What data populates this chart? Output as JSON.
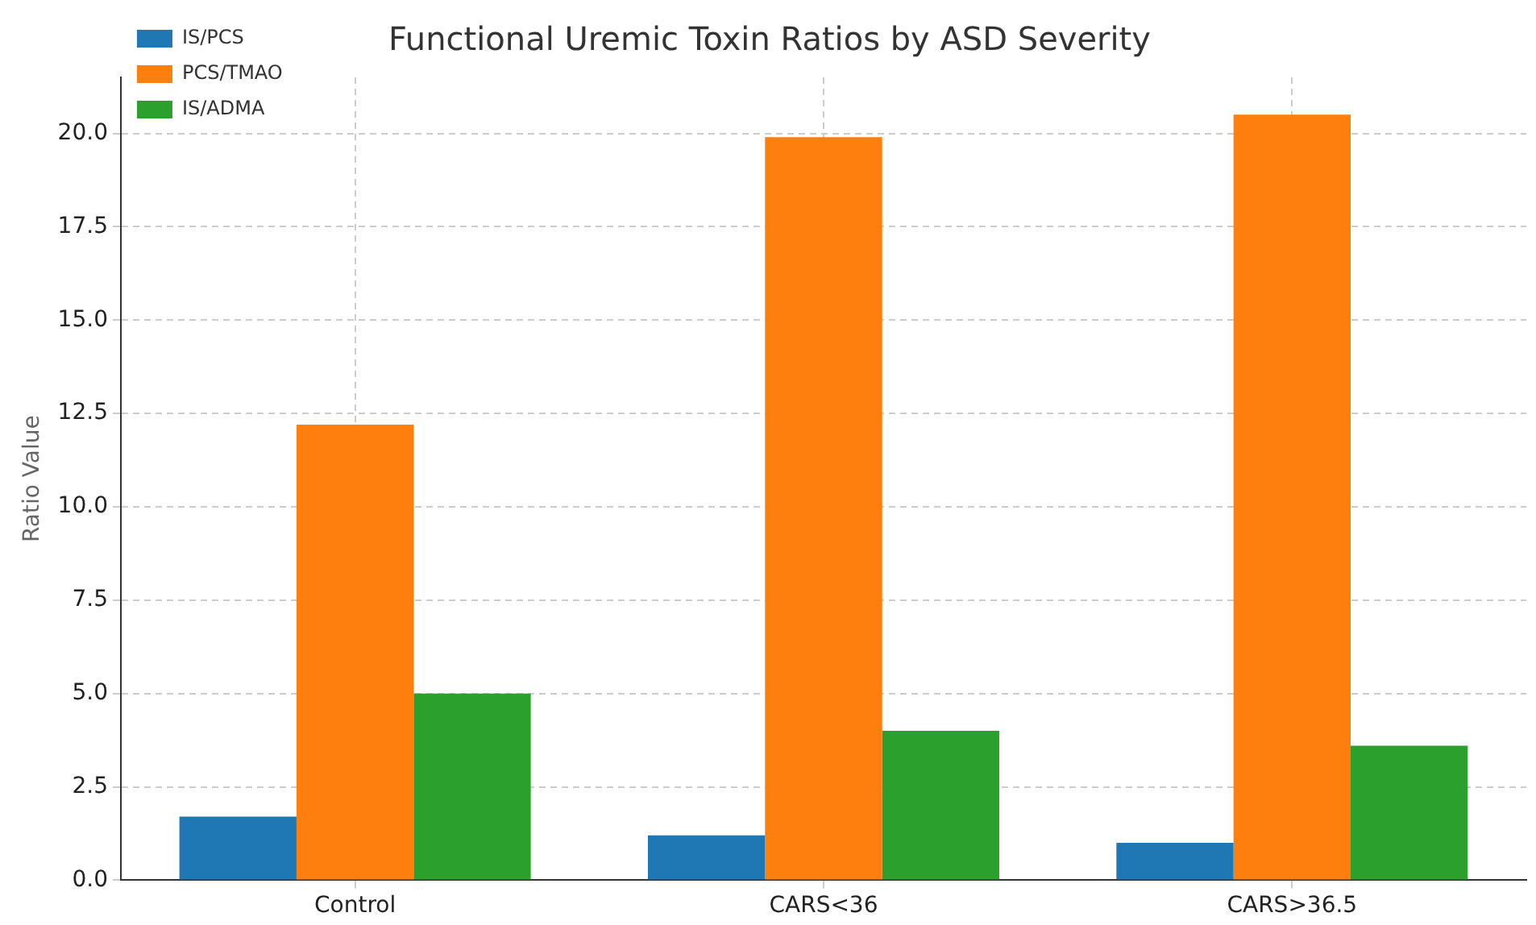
{
  "chart_data": {
    "type": "bar",
    "title": "Functional Uremic Toxin Ratios by ASD Severity",
    "ylabel": "Ratio Value",
    "categories": [
      "Control",
      "CARS<36",
      "CARS>36.5"
    ],
    "series": [
      {
        "name": "IS/PCS",
        "color": "#1f77b4",
        "values": [
          1.7,
          1.2,
          1.0
        ]
      },
      {
        "name": "PCS/TMAO",
        "color": "#ff7f0e",
        "values": [
          12.2,
          19.9,
          20.5
        ]
      },
      {
        "name": "IS/ADMA",
        "color": "#2ca02c",
        "values": [
          5.0,
          4.0,
          3.6
        ]
      }
    ],
    "ylim": [
      0,
      21.5
    ],
    "yticks": [
      {
        "value": 0,
        "label": "0.0"
      },
      {
        "value": 2.5,
        "label": "2.5"
      },
      {
        "value": 5,
        "label": "5.0"
      },
      {
        "value": 7.5,
        "label": "7.5"
      },
      {
        "value": 10,
        "label": "10.0"
      },
      {
        "value": 12.5,
        "label": "12.5"
      },
      {
        "value": 15,
        "label": "15.0"
      },
      {
        "value": 17.5,
        "label": "17.5"
      },
      {
        "value": 20,
        "label": "20.0"
      }
    ],
    "grid": true,
    "legend": "top left"
  }
}
